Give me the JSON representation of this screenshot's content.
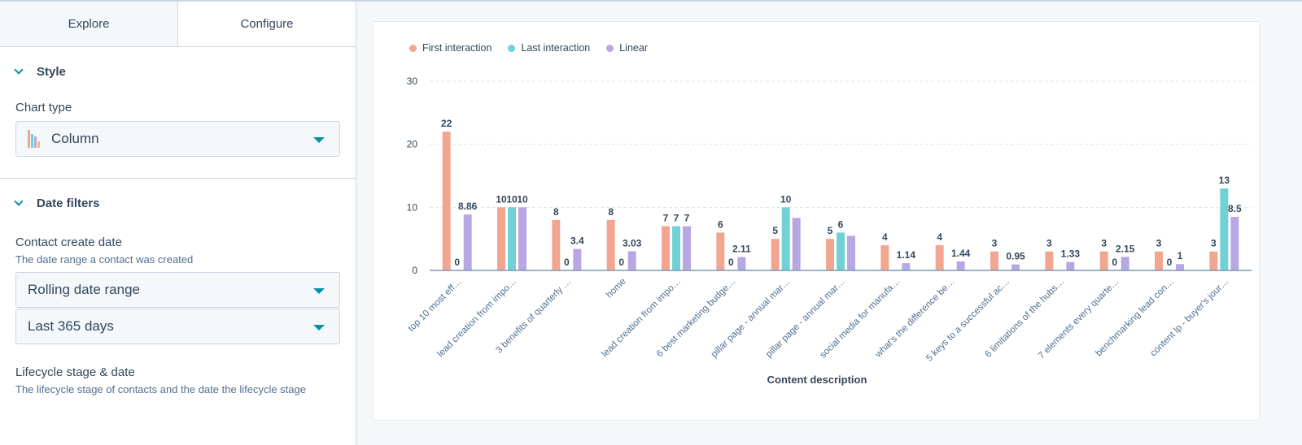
{
  "tabs": [
    "Explore",
    "Configure"
  ],
  "active_tab": "Configure",
  "style_section": {
    "title": "Style",
    "chart_type_label": "Chart type",
    "chart_type_value": "Column"
  },
  "date_filters": {
    "title": "Date filters",
    "contact_create_date": {
      "label": "Contact create date",
      "help": "The date range a contact was created",
      "range_type": "Rolling date range",
      "range_value": "Last 365 days"
    },
    "lifecycle": {
      "label": "Lifecycle stage & date",
      "help": "The lifecycle stage of contacts and the date the lifecycle stage"
    }
  },
  "colors": {
    "first": "#f2a68f",
    "last": "#72d1d6",
    "linear": "#b9a7e4",
    "accent": "#0091ae"
  },
  "chart_data": {
    "type": "bar",
    "xlabel": "Content description",
    "ylabel": "",
    "ylim": [
      0,
      30
    ],
    "yticks": [
      0,
      10,
      20,
      30
    ],
    "grid": true,
    "legend": "top-left",
    "categories": [
      "top 10 most eff…",
      "lead creation from impo…",
      "3 benefits of quarterly …",
      "home",
      "lead creation from impo…",
      "6 best marketing budge…",
      "pillar page - annual mar…",
      "pillar page - annual mar…",
      "social media for manufa…",
      "what's the difference be…",
      "5 keys to a successful ac…",
      "6 limitations of the hubs…",
      "7 elements every quarte…",
      "benchmarking lead con…",
      "content lp - buyer's jour…"
    ],
    "series": [
      {
        "name": "First interaction",
        "values": [
          22,
          10,
          8,
          8,
          7,
          6,
          5,
          5,
          4,
          4,
          3,
          3,
          3,
          3,
          3
        ],
        "labels": [
          "22",
          "10",
          "8",
          "8",
          "7",
          "6",
          "5",
          "5",
          "4",
          "4",
          "3",
          "3",
          "3",
          "3",
          "3"
        ]
      },
      {
        "name": "Last interaction",
        "values": [
          0,
          10,
          0,
          0,
          7,
          0,
          10,
          6,
          null,
          null,
          null,
          null,
          0,
          0,
          13
        ],
        "labels": [
          "0",
          "10",
          "0",
          "0",
          "7",
          "0",
          "10",
          "6",
          null,
          null,
          null,
          null,
          "0",
          "0",
          "13"
        ]
      },
      {
        "name": "Linear",
        "values": [
          8.86,
          10,
          3.4,
          3.03,
          7,
          2.11,
          8.33,
          5.5,
          1.14,
          1.44,
          0.95,
          1.33,
          2.15,
          1,
          8.5
        ],
        "labels": [
          "8.86",
          "10",
          "3.4",
          "3.03",
          "7",
          "2.11",
          null,
          null,
          "1.14",
          "1.44",
          "0.95",
          "1.33",
          "2.15",
          "1",
          "8.5"
        ]
      }
    ]
  }
}
